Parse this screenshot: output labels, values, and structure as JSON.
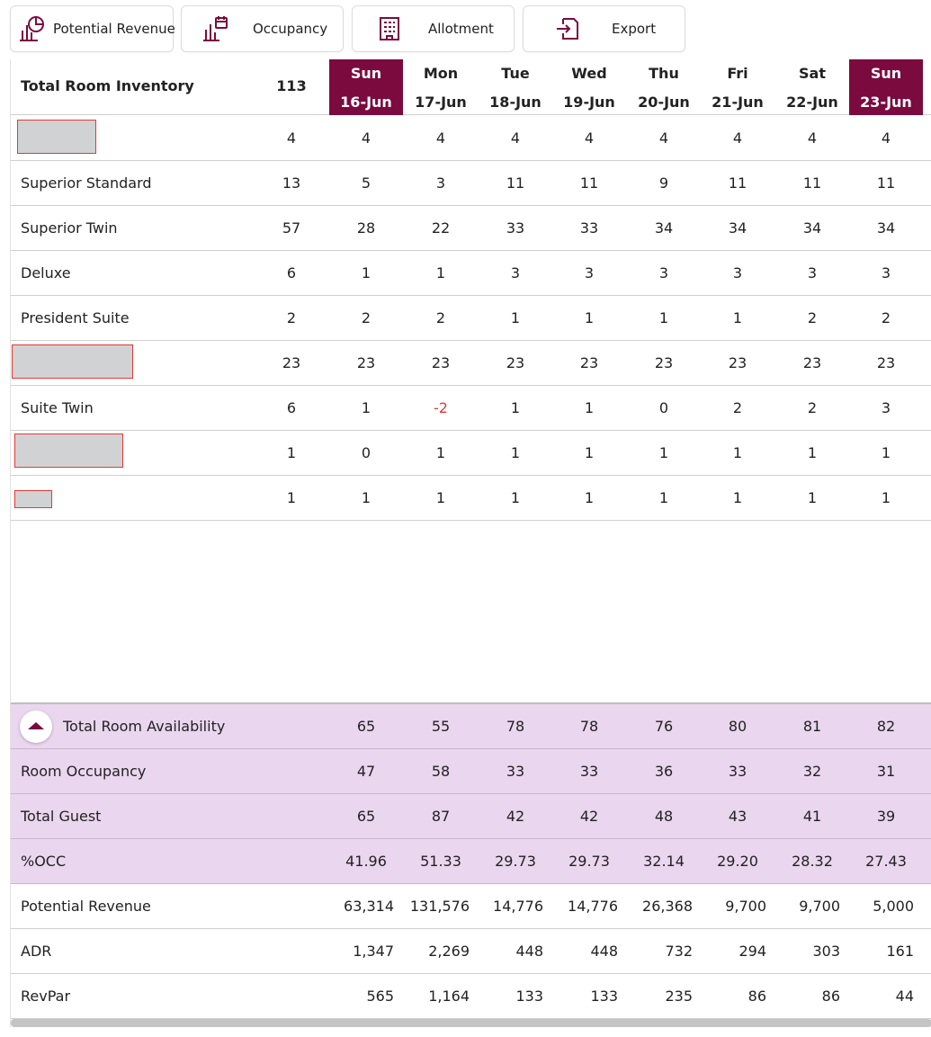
{
  "toolbar": {
    "buttons": [
      {
        "label": "Potential Revenue",
        "icon": "revenue-chart-icon"
      },
      {
        "label": "Occupancy",
        "icon": "occupancy-chart-icon"
      },
      {
        "label": "Allotment",
        "icon": "building-icon"
      },
      {
        "label": "Export",
        "icon": "export-icon"
      }
    ]
  },
  "colors": {
    "accent": "#7b0a3f",
    "summary_bg": "#ead6ef",
    "negative": "#e53935"
  },
  "header": {
    "title": "Total Room Inventory",
    "total": "113",
    "days": [
      {
        "dow": "Sun",
        "date": "16-Jun"
      },
      {
        "dow": "Mon",
        "date": "17-Jun"
      },
      {
        "dow": "Tue",
        "date": "18-Jun"
      },
      {
        "dow": "Wed",
        "date": "19-Jun"
      },
      {
        "dow": "Thu",
        "date": "20-Jun"
      },
      {
        "dow": "Fri",
        "date": "21-Jun"
      },
      {
        "dow": "Sat",
        "date": "22-Jun"
      },
      {
        "dow": "Sun",
        "date": "23-Jun"
      }
    ]
  },
  "rooms": [
    {
      "name": "",
      "total": "4",
      "values": [
        "4",
        "4",
        "4",
        "4",
        "4",
        "4",
        "4",
        "4"
      ]
    },
    {
      "name": "Superior Standard",
      "total": "13",
      "values": [
        "5",
        "3",
        "11",
        "11",
        "9",
        "11",
        "11",
        "11"
      ]
    },
    {
      "name": "Superior Twin",
      "total": "57",
      "values": [
        "28",
        "22",
        "33",
        "33",
        "34",
        "34",
        "34",
        "34"
      ]
    },
    {
      "name": "Deluxe",
      "total": "6",
      "values": [
        "1",
        "1",
        "3",
        "3",
        "3",
        "3",
        "3",
        "3"
      ]
    },
    {
      "name": "President Suite",
      "total": "2",
      "values": [
        "2",
        "2",
        "1",
        "1",
        "1",
        "1",
        "2",
        "2"
      ]
    },
    {
      "name": "",
      "total": "23",
      "values": [
        "23",
        "23",
        "23",
        "23",
        "23",
        "23",
        "23",
        "23"
      ]
    },
    {
      "name": "Suite Twin",
      "total": "6",
      "values": [
        "1",
        "-2",
        "1",
        "1",
        "0",
        "2",
        "2",
        "3"
      ]
    },
    {
      "name": "",
      "total": "1",
      "values": [
        "0",
        "1",
        "1",
        "1",
        "1",
        "1",
        "1",
        "1"
      ]
    },
    {
      "name": "",
      "total": "1",
      "values": [
        "1",
        "1",
        "1",
        "1",
        "1",
        "1",
        "1",
        "1"
      ]
    }
  ],
  "summary": [
    {
      "name": "Total Room Availability",
      "values": [
        "65",
        "55",
        "78",
        "78",
        "76",
        "80",
        "81",
        "82"
      ]
    },
    {
      "name": "Room Occupancy",
      "values": [
        "47",
        "58",
        "33",
        "33",
        "36",
        "33",
        "32",
        "31"
      ]
    },
    {
      "name": "Total Guest",
      "values": [
        "65",
        "87",
        "42",
        "42",
        "48",
        "43",
        "41",
        "39"
      ]
    },
    {
      "name": "%OCC",
      "values": [
        "41.96",
        "51.33",
        "29.73",
        "29.73",
        "32.14",
        "29.20",
        "28.32",
        "27.43"
      ]
    }
  ],
  "financials": [
    {
      "name": "Potential Revenue",
      "values": [
        "63,314",
        "131,576",
        "14,776",
        "14,776",
        "26,368",
        "9,700",
        "9,700",
        "5,000"
      ]
    },
    {
      "name": "ADR",
      "values": [
        "1,347",
        "2,269",
        "448",
        "448",
        "732",
        "294",
        "303",
        "161"
      ]
    },
    {
      "name": "RevPar",
      "values": [
        "565",
        "1,164",
        "133",
        "133",
        "235",
        "86",
        "86",
        "44"
      ]
    }
  ]
}
